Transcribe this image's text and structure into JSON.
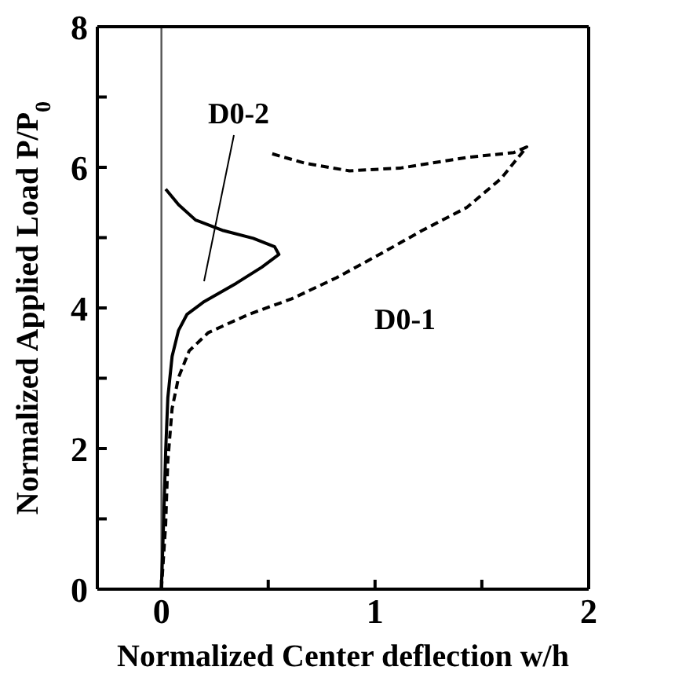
{
  "chart_data": {
    "type": "line",
    "xlabel": "Normalized Center deflection w/h",
    "ylabel": "Normalized Applied Load P/P$_{0}$",
    "xlim": [
      -0.3,
      2
    ],
    "xticks": [
      0,
      {
        "value": 0.5,
        "label": null
      },
      1,
      {
        "value": 1.5,
        "label": null
      },
      2
    ],
    "ylim": [
      0,
      8
    ],
    "yticks": [
      0,
      {
        "value": 1,
        "label": null
      },
      2,
      {
        "value": 3,
        "label": null
      },
      4,
      {
        "value": 5,
        "label": null
      },
      6,
      {
        "value": 7,
        "label": null
      },
      8
    ],
    "marker": "none",
    "series": [
      {
        "color": "#000000",
        "line_style": "dashed",
        "x": [
          0,
          0.02,
          0.03,
          0.05,
          0.08,
          0.13,
          0.22,
          0.41,
          0.61,
          0.82,
          1.02,
          1.22,
          1.43,
          1.59,
          1.71,
          1.65,
          1.43,
          1.12,
          0.88,
          0.67,
          0.51
        ],
        "values": [
          0,
          0.93,
          1.82,
          2.57,
          3.01,
          3.39,
          3.65,
          3.91,
          4.13,
          4.43,
          4.76,
          5.1,
          5.43,
          5.84,
          6.29,
          6.21,
          6.14,
          5.99,
          5.95,
          6.06,
          6.2
        ]
      },
      {
        "color": "#000000",
        "line_style": "solid",
        "x": [
          0,
          0.01,
          0.02,
          0.03,
          0.05,
          0.08,
          0.12,
          0.2,
          0.35,
          0.47,
          0.55,
          0.53,
          0.43,
          0.29,
          0.16,
          0.08,
          0.02
        ],
        "values": [
          0,
          0.93,
          1.97,
          2.72,
          3.31,
          3.68,
          3.91,
          4.09,
          4.35,
          4.58,
          4.76,
          4.87,
          4.99,
          5.1,
          5.25,
          5.47,
          5.69
        ]
      }
    ],
    "ref_lines": [
      {
        "axis": "x",
        "value": 0,
        "color": "#555555"
      }
    ],
    "annotations": [
      "D0-2",
      "D0-1"
    ]
  }
}
